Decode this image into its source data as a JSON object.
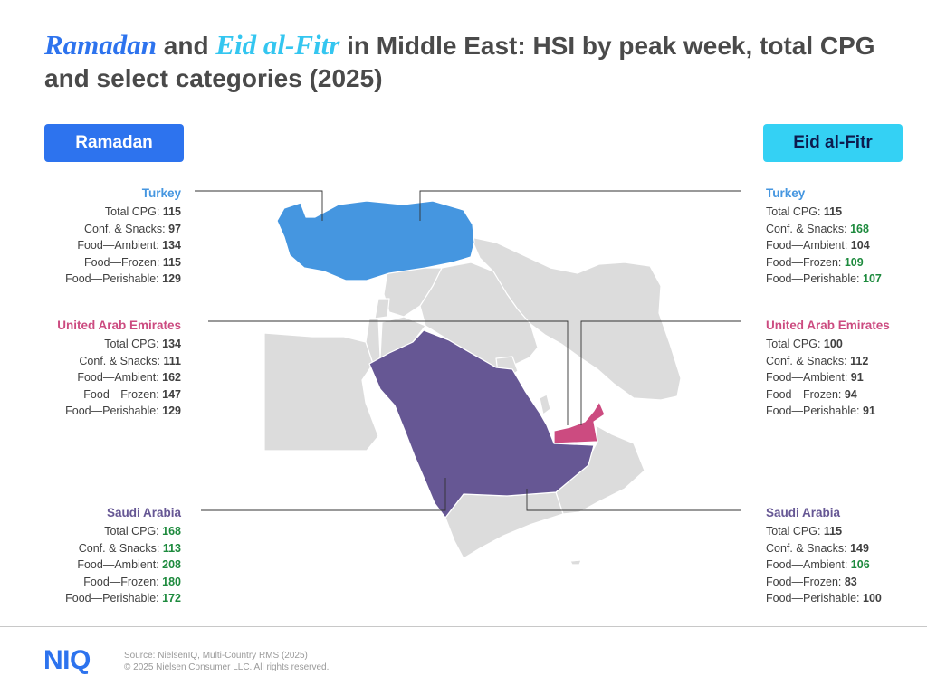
{
  "title": {
    "part1": "Ramadan",
    "part2": " and ",
    "part3": "Eid al-Fitr",
    "part4": " in Middle East: HSI by peak week, total CPG and select categories (2025)"
  },
  "ramadan_label": "Ramadan",
  "eid_label": "Eid al-Fitr",
  "colors": {
    "ramadan_pill": "#2d73ee",
    "eid_pill": "#34d1f4",
    "turkey": "#4596e0",
    "uae": "#cc4b80",
    "saudi": "#665794",
    "other_land": "#dcdcdc",
    "highlight_green": "#1d8a3d",
    "title_ramadan": "#2d73ee",
    "title_eid": "#34c6f0"
  },
  "ramadan": {
    "countries": [
      {
        "name": "Turkey",
        "color_key": "turkey",
        "rows": [
          {
            "label": "Total CPG: ",
            "value": "115",
            "highlight": false
          },
          {
            "label": "Conf. & Snacks: ",
            "value": "97",
            "highlight": false
          },
          {
            "label": "Food—Ambient: ",
            "value": "134",
            "highlight": false
          },
          {
            "label": "Food—Frozen: ",
            "value": "115",
            "highlight": false
          },
          {
            "label": "Food—Perishable: ",
            "value": "129",
            "highlight": false
          }
        ]
      },
      {
        "name": "United Arab Emirates",
        "color_key": "uae",
        "rows": [
          {
            "label": "Total CPG: ",
            "value": "134",
            "highlight": false
          },
          {
            "label": "Conf. & Snacks: ",
            "value": "111",
            "highlight": false
          },
          {
            "label": "Food—Ambient: ",
            "value": "162",
            "highlight": false
          },
          {
            "label": "Food—Frozen: ",
            "value": "147",
            "highlight": false
          },
          {
            "label": "Food—Perishable: ",
            "value": "129",
            "highlight": false
          }
        ]
      },
      {
        "name": "Saudi Arabia",
        "color_key": "saudi",
        "rows": [
          {
            "label": "Total CPG: ",
            "value": "168",
            "highlight": true
          },
          {
            "label": "Conf. & Snacks: ",
            "value": "113",
            "highlight": true
          },
          {
            "label": "Food—Ambient: ",
            "value": "208",
            "highlight": true
          },
          {
            "label": "Food—Frozen: ",
            "value": "180",
            "highlight": true
          },
          {
            "label": "Food—Perishable: ",
            "value": "172",
            "highlight": true
          }
        ]
      }
    ]
  },
  "eid": {
    "countries": [
      {
        "name": "Turkey",
        "color_key": "turkey",
        "rows": [
          {
            "label": "Total CPG: ",
            "value": "115",
            "highlight": false
          },
          {
            "label": "Conf. & Snacks: ",
            "value": "168",
            "highlight": true
          },
          {
            "label": "Food—Ambient: ",
            "value": "104",
            "highlight": false
          },
          {
            "label": "Food—Frozen: ",
            "value": "109",
            "highlight": true
          },
          {
            "label": "Food—Perishable: ",
            "value": "107",
            "highlight": true
          }
        ]
      },
      {
        "name": "United Arab Emirates",
        "color_key": "uae",
        "rows": [
          {
            "label": "Total CPG: ",
            "value": "100",
            "highlight": false
          },
          {
            "label": "Conf. & Snacks: ",
            "value": "112",
            "highlight": false
          },
          {
            "label": "Food—Ambient: ",
            "value": "91",
            "highlight": false
          },
          {
            "label": "Food—Frozen: ",
            "value": "94",
            "highlight": false
          },
          {
            "label": "Food—Perishable: ",
            "value": "91",
            "highlight": false
          }
        ]
      },
      {
        "name": "Saudi Arabia",
        "color_key": "saudi",
        "rows": [
          {
            "label": "Total CPG: ",
            "value": "115",
            "highlight": false
          },
          {
            "label": "Conf. & Snacks: ",
            "value": "149",
            "highlight": false
          },
          {
            "label": "Food—Ambient: ",
            "value": "106",
            "highlight": true
          },
          {
            "label": "Food—Frozen: ",
            "value": "83",
            "highlight": false
          },
          {
            "label": "Food—Perishable: ",
            "value": "100",
            "highlight": false
          }
        ]
      }
    ]
  },
  "footer": {
    "logo": "NIQ",
    "logo_color": "#2d73ee",
    "source": "Source: NielsenIQ, Multi-Country RMS (2025)",
    "copyright": "© 2025 Nielsen Consumer LLC. All rights reserved."
  }
}
